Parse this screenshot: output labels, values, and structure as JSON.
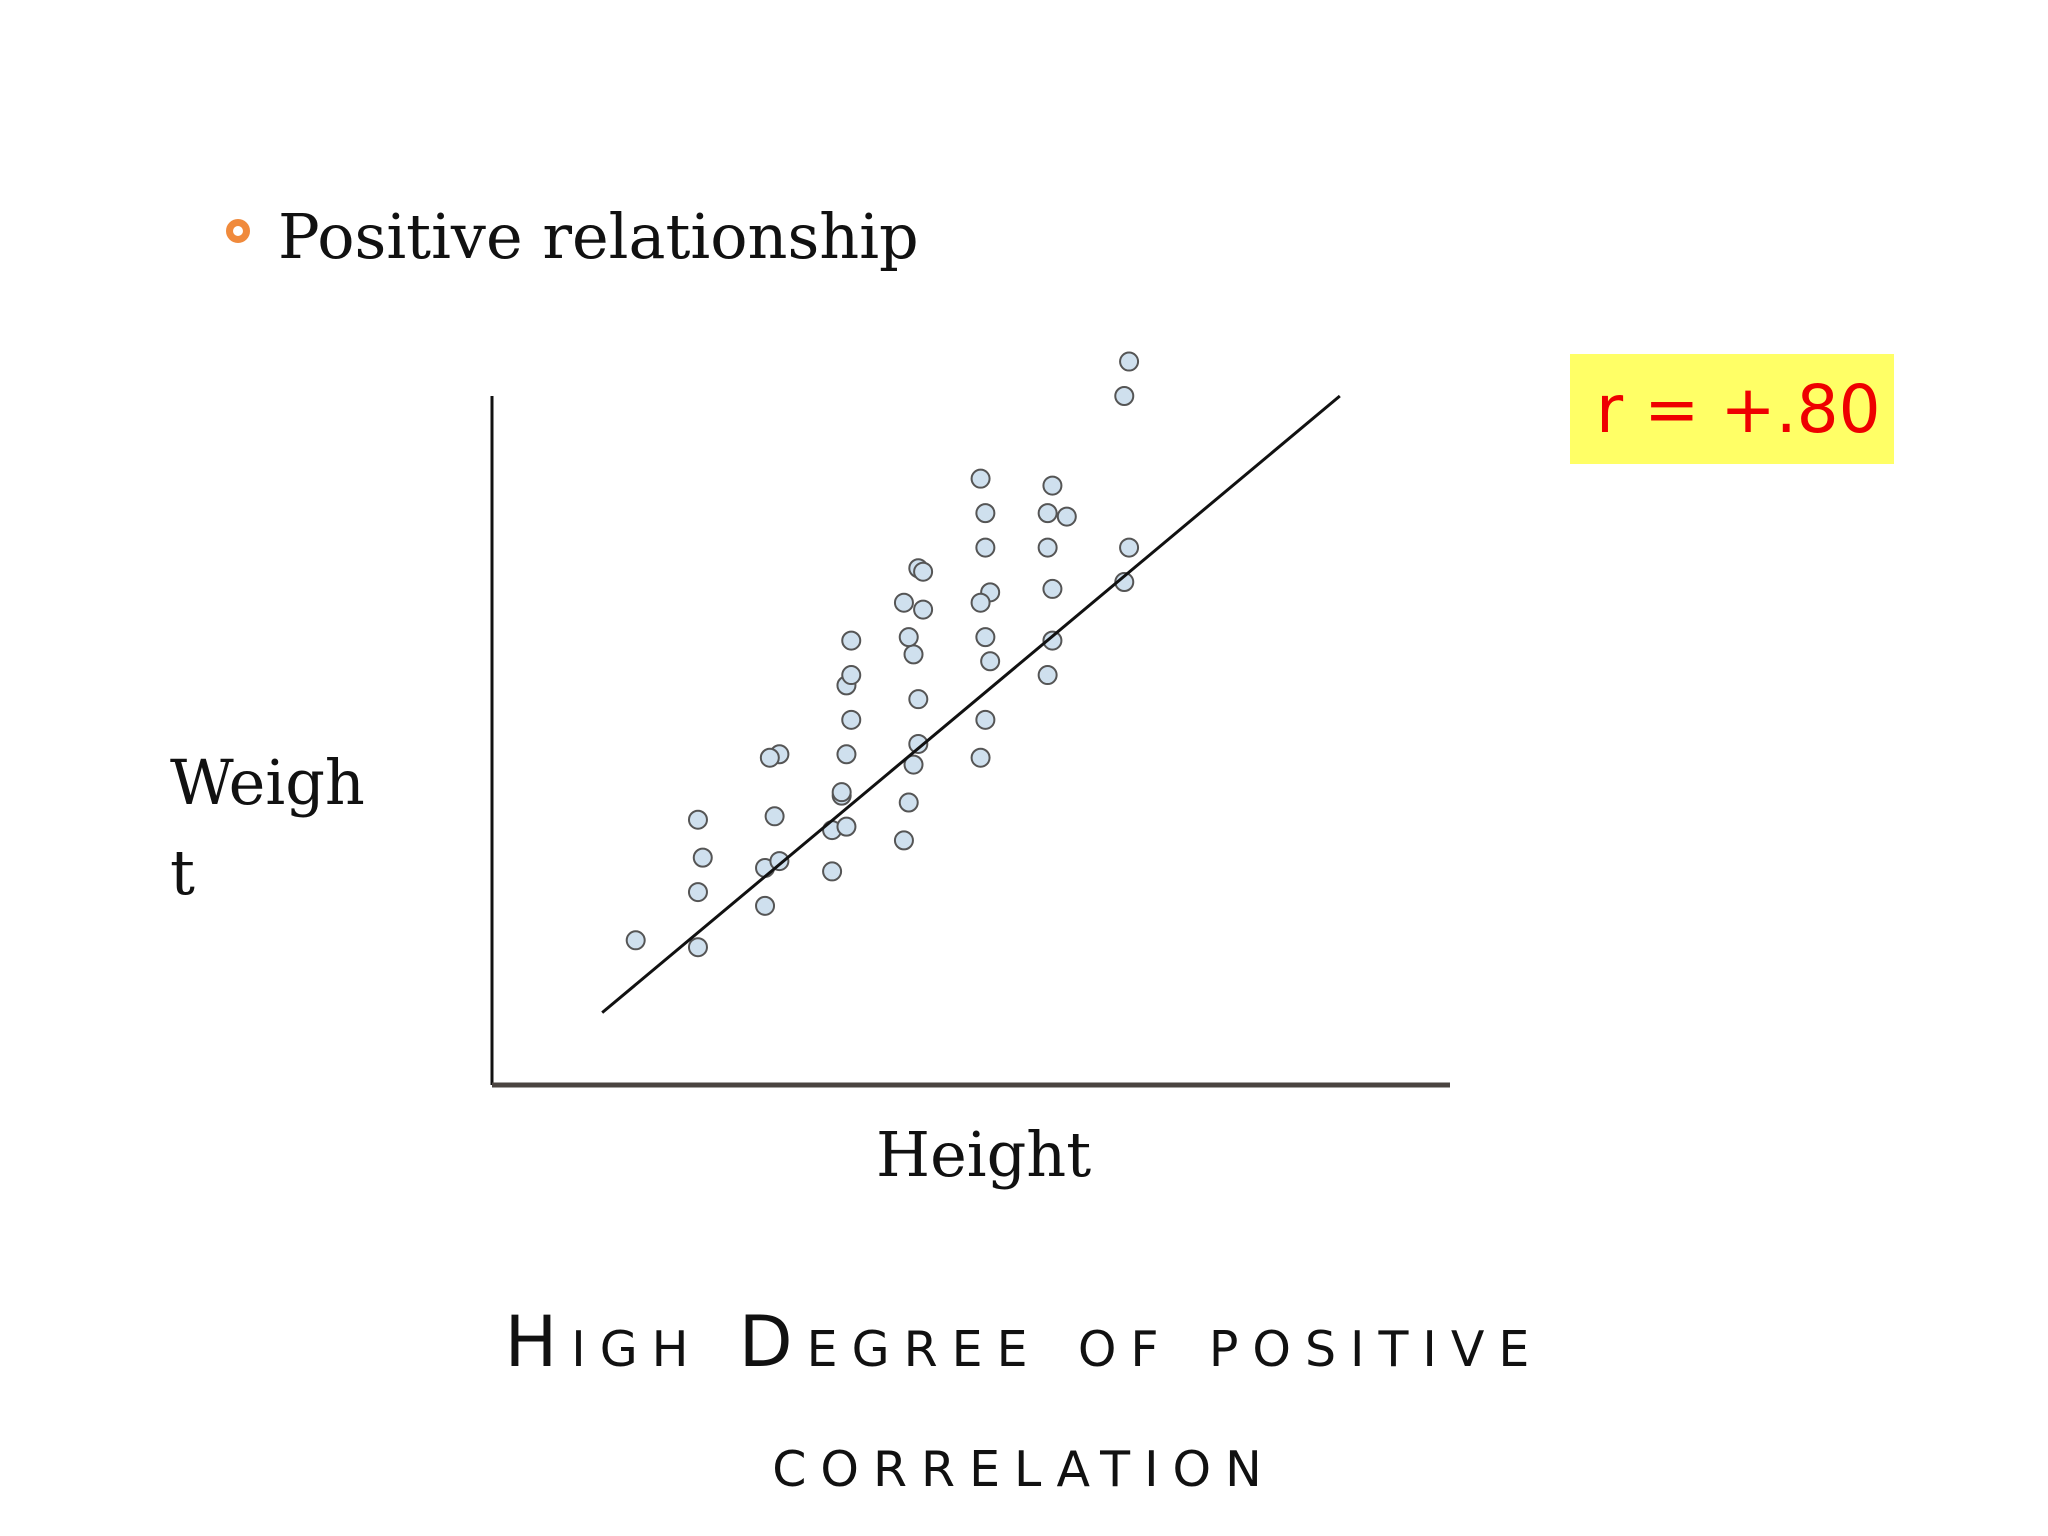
{
  "bullet": {
    "text": "Positive relationship",
    "color": "#f08a3c"
  },
  "badge": {
    "text": "r = +.80",
    "text_color": "#ee0000",
    "background": "#ffff66"
  },
  "title": {
    "line1": "High Degree of positive",
    "line2": "correlation"
  },
  "chart_data": {
    "type": "scatter",
    "xlabel": "Height",
    "ylabel": "Weight",
    "xlim": [
      0,
      10
    ],
    "ylim": [
      0,
      10
    ],
    "grid": false,
    "legend": "none",
    "point_color": "#cfe0ee",
    "point_edge_color": "#555555",
    "trendline": {
      "x": [
        1.15,
        8.85
      ],
      "y": [
        1.05,
        10.0
      ]
    },
    "x": [
      1.5,
      2.15,
      2.15,
      2.2,
      2.15,
      2.85,
      2.85,
      2.95,
      3.0,
      2.9,
      3.0,
      3.55,
      3.55,
      3.65,
      3.7,
      3.65,
      3.7,
      3.75,
      3.7,
      3.75,
      3.75,
      4.3,
      4.35,
      4.4,
      4.45,
      4.45,
      4.4,
      4.35,
      4.3,
      4.45,
      4.5,
      4.5,
      5.1,
      5.15,
      5.2,
      5.15,
      5.2,
      5.1,
      5.15,
      5.15,
      5.1,
      5.8,
      5.85,
      5.85,
      5.8,
      5.8,
      5.85,
      6.0,
      6.6,
      6.6,
      6.65,
      6.65
    ],
    "y": [
      2.1,
      2.0,
      2.8,
      3.3,
      3.85,
      2.6,
      3.15,
      3.9,
      4.8,
      4.75,
      3.25,
      3.1,
      3.7,
      4.2,
      3.75,
      4.25,
      4.8,
      5.3,
      5.8,
      5.95,
      6.45,
      3.55,
      4.1,
      4.65,
      4.95,
      5.6,
      6.25,
      6.5,
      7.0,
      7.5,
      7.45,
      6.9,
      4.75,
      5.3,
      6.15,
      6.5,
      7.15,
      7.0,
      7.8,
      8.3,
      8.8,
      5.95,
      6.45,
      7.2,
      7.8,
      8.3,
      8.7,
      8.25,
      7.3,
      10.0,
      10.5,
      7.8
    ]
  }
}
